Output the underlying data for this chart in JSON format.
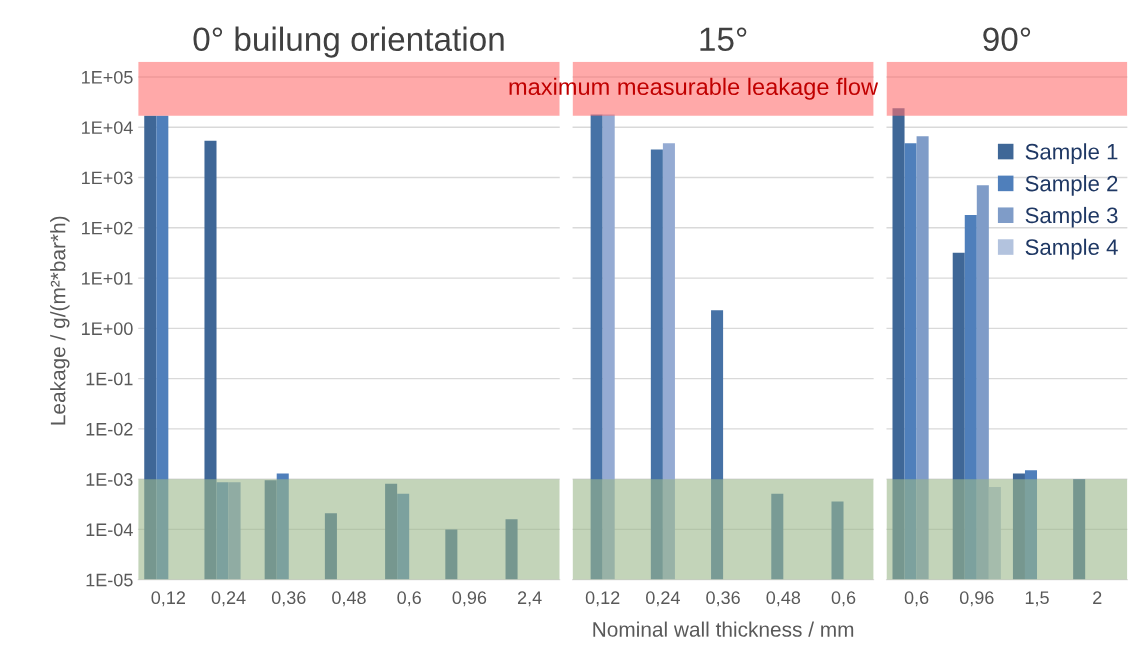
{
  "chart_data": [
    {
      "type": "bar",
      "title": "0° builung orientation",
      "ylabel": "Leakage / g/(m²*bar*h)",
      "log": true,
      "grid": "y",
      "categories": [
        "0,12",
        "0,24",
        "0,36",
        "0,48",
        "0,6",
        "0,96",
        "2,4"
      ],
      "ylim": [
        1e-05,
        200000
      ],
      "yticks": [
        {
          "value": 1e-05,
          "label": "1E-05"
        },
        {
          "value": 0.0001,
          "label": "1E-04"
        },
        {
          "value": 0.001,
          "label": "1E-03"
        },
        {
          "value": 0.01,
          "label": "1E-02"
        },
        {
          "value": 0.1,
          "label": "1E-01"
        },
        {
          "value": 1,
          "label": "1E+00"
        },
        {
          "value": 10,
          "label": "1E+01"
        },
        {
          "value": 100,
          "label": "1E+02"
        },
        {
          "value": 1000,
          "label": "1E+03"
        },
        {
          "value": 10000,
          "label": "1E+04"
        },
        {
          "value": 100000,
          "label": "1E+05"
        }
      ],
      "series": [
        {
          "color": "#3f6797",
          "values": [
            17000,
            5400,
            0.00095,
            0.00021,
            0.00081,
            0.0001,
            0.00016
          ]
        },
        {
          "color": "#4f7fbb",
          "values": [
            17000,
            0.00087,
            0.0013,
            null,
            0.00051,
            null,
            null
          ]
        },
        {
          "color": "#7f9cc8",
          "values": [
            null,
            0.00087,
            null,
            null,
            null,
            null,
            null
          ]
        },
        {
          "color": "#b3c3de",
          "values": [
            null,
            null,
            null,
            null,
            null,
            null,
            null
          ]
        }
      ],
      "bands": [
        {
          "axis": "y",
          "from": 17000,
          "to": 200000,
          "color": "#ff6f6f"
        },
        {
          "axis": "y",
          "from": 1e-05,
          "to": 0.001,
          "color": "#9bb78a"
        }
      ]
    },
    {
      "type": "bar",
      "title": "15°",
      "xlabel": "Nominal wall thickness / mm",
      "log": true,
      "grid": "y",
      "tick_labels": "x",
      "categories": [
        "0,12",
        "0,24",
        "0,36",
        "0,48",
        "0,6"
      ],
      "ylim": [
        1e-05,
        200000
      ],
      "yticks": [
        1e-05,
        0.0001,
        0.001,
        0.01,
        0.1,
        1,
        10,
        100,
        1000,
        10000,
        100000
      ],
      "series": [
        {
          "color": "#3f6797",
          "values": [
            null,
            null,
            null,
            null,
            null
          ]
        },
        {
          "color": "#4672a6",
          "values": [
            18000,
            3600,
            2.3,
            0.00051,
            0.00036
          ]
        },
        {
          "color": "#95abd3",
          "values": [
            18000,
            4800,
            null,
            null,
            null
          ]
        },
        {
          "color": "#b3c3de",
          "values": [
            null,
            null,
            null,
            null,
            null
          ]
        }
      ],
      "bands": [
        {
          "axis": "y",
          "from": 17000,
          "to": 200000,
          "color": "#ff6f6f",
          "label": "maximum measurable leakage flow"
        },
        {
          "axis": "y",
          "from": 1e-05,
          "to": 0.001,
          "color": "#9bb78a"
        }
      ]
    },
    {
      "type": "bar",
      "title": "90°",
      "log": true,
      "grid": "y",
      "legend": "top right",
      "tick_labels": "x",
      "categories": [
        "0,6",
        "0,96",
        "1,5",
        "2"
      ],
      "ylim": [
        1e-05,
        200000
      ],
      "yticks": [
        1e-05,
        0.0001,
        0.001,
        0.01,
        0.1,
        1,
        10,
        100,
        1000,
        10000,
        100000
      ],
      "series": [
        {
          "name": "Sample 1",
          "color": "#3f6797",
          "values": [
            24000,
            32,
            0.0013,
            0.001
          ]
        },
        {
          "name": "Sample 2",
          "color": "#4f7fbb",
          "values": [
            4800,
            180,
            0.0015,
            null
          ]
        },
        {
          "name": "Sample 3",
          "color": "#7f9cc8",
          "values": [
            6600,
            700,
            null,
            null
          ]
        },
        {
          "name": "Sample 4",
          "color": "#b3c3de",
          "values": [
            null,
            0.0007,
            null,
            null
          ]
        }
      ],
      "bands": [
        {
          "axis": "y",
          "from": 17000,
          "to": 200000,
          "color": "#ff6f6f"
        },
        {
          "axis": "y",
          "from": 1e-05,
          "to": 0.001,
          "color": "#9bb78a"
        }
      ]
    }
  ]
}
